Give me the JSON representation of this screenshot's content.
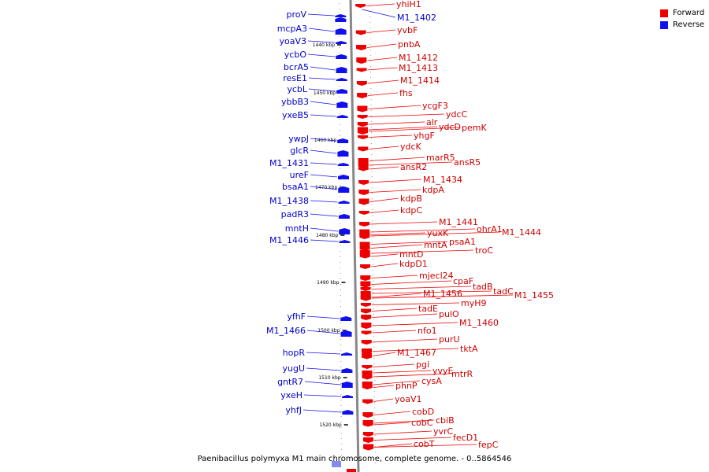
{
  "legend": {
    "forward_label": "Forward",
    "forward_color": "#ee0000",
    "reverse_label": "Reverse",
    "reverse_color": "#1010ee"
  },
  "caption": "Paenibacillus polymyxa M1 main chromosome, complete genome. - 0..5864546",
  "scale_ticks": [
    "1440 kbp",
    "1450 kbp",
    "1460 kbp",
    "1470 kbp",
    "1480 kbp",
    "1490 kbp",
    "1500 kbp",
    "1510 kbp",
    "1520 kbp"
  ],
  "forward_genes": [
    "yhiH1",
    "yvbF",
    "pnbA",
    "M1_1412",
    "M1_1413",
    "M1_1414",
    "fhs",
    "ycgF3",
    "ydcC",
    "alr",
    "ydcD",
    "pemK",
    "yhgF",
    "ydcK",
    "marR5",
    "ansR5",
    "ansR2",
    "M1_1434",
    "kdpA",
    "kdpB",
    "kdpC",
    "M1_1441",
    "ohrA1",
    "M1_1444",
    "yuxK",
    "psaA1",
    "mntA",
    "troC",
    "mntD",
    "kdpD1",
    "mjecl24",
    "cpaF",
    "tadB",
    "tadC",
    "M1_1455",
    "M1_1456",
    "myH9",
    "tadE",
    "pulO",
    "M1_1460",
    "nfo1",
    "purU",
    "tktA",
    "M1_1467",
    "pgi",
    "yvyE",
    "mtrR",
    "cysA",
    "phnP",
    "yoaV1",
    "cobD",
    "cbiB",
    "cobC",
    "yvrC",
    "fecD1",
    "cobT",
    "fepC"
  ],
  "reverse_genes": [
    "proV",
    "M1_1402",
    "mcpA3",
    "yoaV3",
    "ycbO",
    "bcrA5",
    "resE1",
    "ycbL",
    "ybbB3",
    "yxeB5",
    "ywpJ",
    "glcR",
    "M1_1431",
    "ureF",
    "bsaA1",
    "M1_1438",
    "padR3",
    "mntH",
    "M1_1446",
    "yfhF",
    "M1_1466",
    "hopR",
    "yugU",
    "gntR7",
    "yxeH",
    "yhfJ"
  ]
}
